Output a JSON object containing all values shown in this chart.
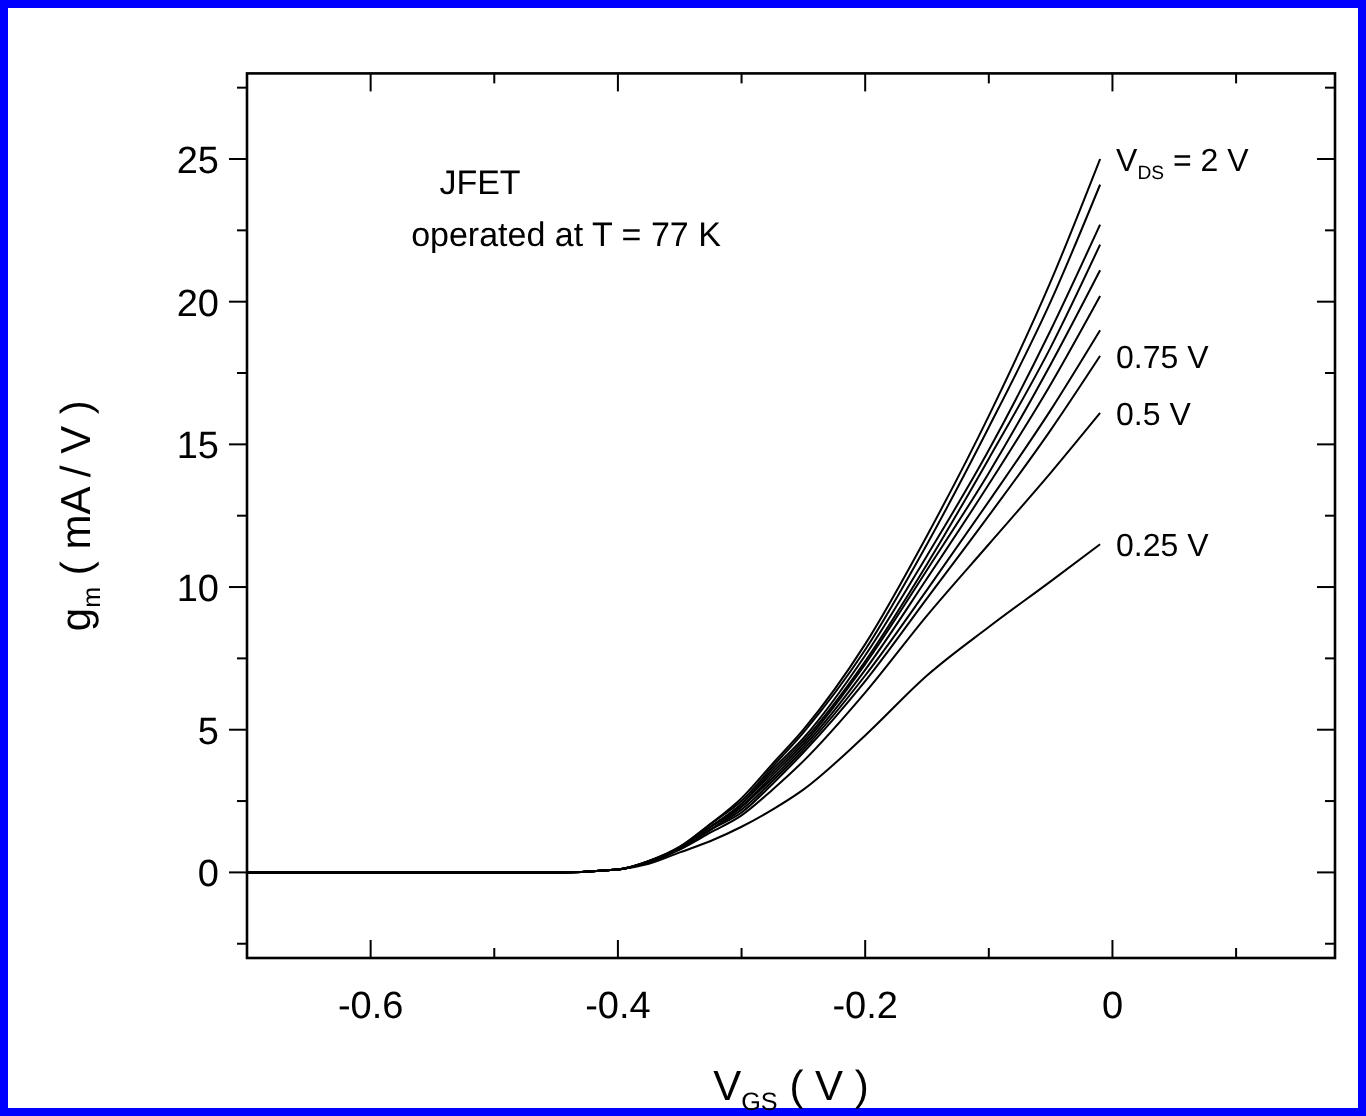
{
  "chart_data": {
    "type": "line",
    "xlabel": "V$_{GS}$ ( V )",
    "ylabel": "g$_{m}$ ( mA / V )",
    "x": [
      -0.7,
      -0.6,
      -0.5,
      -0.45,
      -0.4,
      -0.375,
      -0.35,
      -0.325,
      -0.3,
      -0.275,
      -0.25,
      -0.2,
      -0.15,
      -0.1,
      -0.05,
      -0.01
    ],
    "xlim": [
      -0.7,
      0.18
    ],
    "ylim": [
      -3,
      28
    ],
    "xticks": [
      {
        "value": -0.7,
        "label": null
      },
      -0.6,
      {
        "value": -0.5,
        "label": null
      },
      -0.4,
      {
        "value": -0.3,
        "label": null
      },
      -0.2,
      {
        "value": -0.1,
        "label": null
      },
      0,
      {
        "value": 0.1,
        "label": null
      }
    ],
    "yticks": [
      {
        "value": -2.5,
        "label": null
      },
      0,
      {
        "value": 2.5,
        "label": null
      },
      5,
      {
        "value": 7.5,
        "label": null
      },
      10,
      {
        "value": 12.5,
        "label": null
      },
      15,
      {
        "value": 17.5,
        "label": null
      },
      20,
      {
        "value": 22.5,
        "label": null
      },
      25,
      {
        "value": 27.5,
        "label": null
      }
    ],
    "grid": false,
    "marker": "none",
    "line_style": "solid",
    "series": [
      {
        "name": "0.25 V",
        "color": "#000000",
        "values": [
          0,
          0,
          0,
          0,
          0.1,
          0.3,
          0.7,
          1.1,
          1.6,
          2.2,
          2.9,
          4.8,
          6.9,
          8.6,
          10.2,
          11.5
        ]
      },
      {
        "name": "0.5 V",
        "color": "#000000",
        "values": [
          0,
          0,
          0,
          0,
          0.1,
          0.35,
          0.8,
          1.4,
          2.0,
          2.9,
          3.9,
          6.3,
          9.0,
          11.5,
          14.0,
          16.1
        ]
      },
      {
        "name": "0.75 V",
        "color": "#000000",
        "values": [
          0,
          0,
          0,
          0,
          0.1,
          0.36,
          0.82,
          1.5,
          2.1,
          3.1,
          4.2,
          6.7,
          9.6,
          12.5,
          15.5,
          18.1
        ]
      },
      {
        "color": "#000000",
        "values": [
          0,
          0,
          0,
          0,
          0.1,
          0.37,
          0.83,
          1.5,
          2.2,
          3.2,
          4.3,
          6.9,
          9.9,
          13.0,
          16.2,
          19.0
        ]
      },
      {
        "color": "#000000",
        "values": [
          0,
          0,
          0,
          0,
          0.1,
          0.37,
          0.85,
          1.5,
          2.3,
          3.3,
          4.4,
          7.1,
          10.3,
          13.6,
          17.1,
          20.2
        ]
      },
      {
        "color": "#000000",
        "values": [
          0,
          0,
          0,
          0,
          0.1,
          0.38,
          0.86,
          1.6,
          2.3,
          3.4,
          4.5,
          7.3,
          10.6,
          14.0,
          17.8,
          21.1
        ]
      },
      {
        "color": "#000000",
        "values": [
          0,
          0,
          0,
          0,
          0.1,
          0.38,
          0.87,
          1.6,
          2.4,
          3.5,
          4.6,
          7.4,
          10.8,
          14.5,
          18.4,
          22.0
        ]
      },
      {
        "color": "#000000",
        "values": [
          0,
          0,
          0,
          0,
          0.1,
          0.39,
          0.87,
          1.6,
          2.4,
          3.6,
          4.7,
          7.6,
          11.1,
          14.8,
          19.0,
          22.7
        ]
      },
      {
        "color": "#000000",
        "values": [
          0,
          0,
          0,
          0,
          0.1,
          0.4,
          0.89,
          1.7,
          2.5,
          3.7,
          4.9,
          7.8,
          11.5,
          15.6,
          20.0,
          24.1
        ]
      },
      {
        "name": "V$_{DS}$ = 2 V",
        "color": "#000000",
        "values": [
          0,
          0,
          0,
          0,
          0.1,
          0.4,
          0.9,
          1.7,
          2.6,
          3.8,
          5.0,
          8.0,
          11.8,
          16.0,
          20.7,
          25.0
        ]
      }
    ],
    "annotations": [
      "JFET",
      "operated at  T = 77 K"
    ]
  }
}
